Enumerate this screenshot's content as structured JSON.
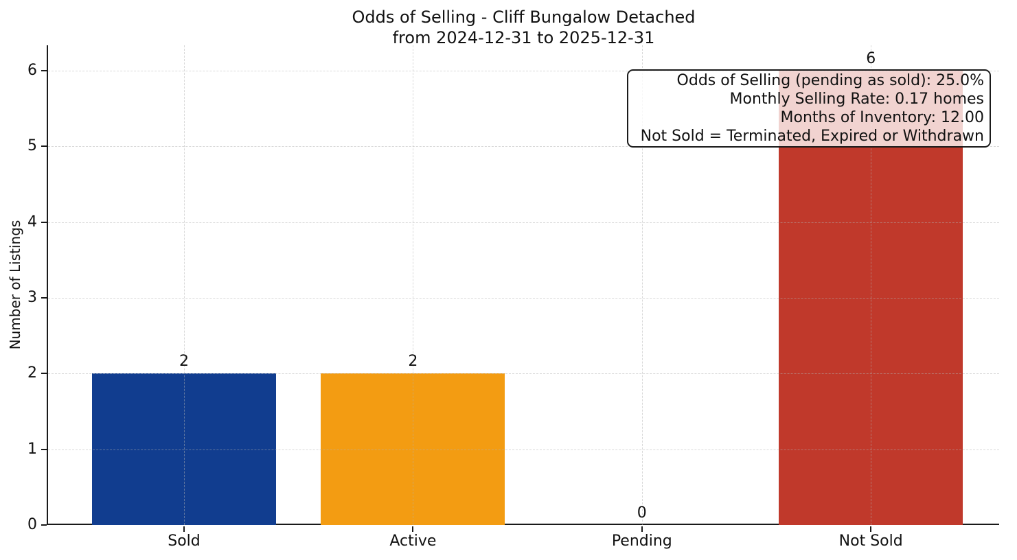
{
  "figure": {
    "background": "#ffffff",
    "text_color": "#111111",
    "spine_color": "#1a1a1a"
  },
  "chart_data": {
    "type": "bar",
    "title": "Odds of Selling - Cliff Bungalow Detached",
    "subtitle": "from 2024-12-31 to 2025-12-31",
    "xlabel": "",
    "ylabel": "Number of Listings",
    "categories": [
      "Sold",
      "Active",
      "Pending",
      "Not Sold"
    ],
    "values": [
      2,
      2,
      0,
      6
    ],
    "bar_colors": [
      "#113d8f",
      "#f39c12",
      null,
      "#c0392b"
    ],
    "yticks": [
      0,
      1,
      2,
      3,
      4,
      5,
      6
    ],
    "ylim": [
      0,
      6.33
    ],
    "grid": "both-axes-dashed",
    "legend": null,
    "value_labels": [
      2,
      2,
      0,
      6
    ],
    "annotation_lines": [
      "Odds of Selling (pending as sold): 25.0%",
      "Monthly Selling Rate: 0.17 homes",
      "Months of Inventory: 12.00",
      "Not Sold = Terminated, Expired or Withdrawn"
    ]
  }
}
